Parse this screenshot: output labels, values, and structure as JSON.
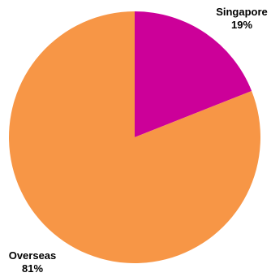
{
  "chart_data": {
    "type": "pie",
    "slices": [
      {
        "label": "Singapore",
        "percent_label": "19%",
        "value": 19,
        "color": "#cc0099"
      },
      {
        "label": "Overseas",
        "percent_label": "81%",
        "value": 81,
        "color": "#f79646"
      }
    ],
    "start_angle_deg": 0,
    "direction": "clockwise",
    "legend": "none"
  }
}
